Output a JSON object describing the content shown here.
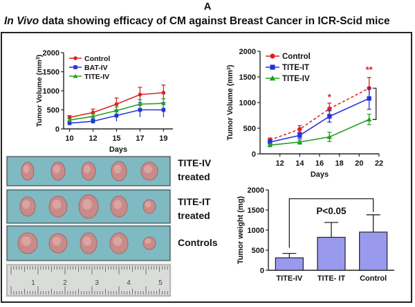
{
  "panel_letter": "A",
  "title": {
    "italic": "In Vivo",
    "rest": " data showing efficacy of CM against Breast Cancer in ICR-Scid mice"
  },
  "photo": {
    "rows": [
      {
        "label_line1": "TITE-IV",
        "label_line2": "treated",
        "tumor_count": 5
      },
      {
        "label_line1": "TITE-IT",
        "label_line2": "treated",
        "tumor_count": 5
      },
      {
        "label_line1": "Controls",
        "label_line2": "",
        "tumor_count": 5
      }
    ],
    "ruler_numbers": [
      "1",
      "2",
      "3",
      "4",
      "5"
    ]
  },
  "colors": {
    "control": "#e02020",
    "bat": "#2233dd",
    "tite_iv": "#22a022",
    "tite_it": "#2233dd",
    "bar_fill": "#9999ee",
    "photo_bg": "#7fb9c1"
  },
  "chart_data": [
    {
      "id": "chart1",
      "type": "line",
      "title": "",
      "xlabel": "Days",
      "ylabel": "Tumor Volume (mm³)",
      "ylabel_main": "Tumor Volume (mm",
      "ylabel_sup": "3",
      "ylabel_end": ")",
      "x_ticks": [
        "10",
        "12",
        "15",
        "17",
        "19"
      ],
      "x_positions": [
        10,
        12,
        14,
        16,
        18
      ],
      "ylim": [
        0,
        2000
      ],
      "y_ticks": [
        "0",
        "500",
        "1000",
        "1500",
        "2000"
      ],
      "y_tick_values": [
        0,
        500,
        1000,
        1500,
        2000
      ],
      "legend_position": "top-left",
      "series": [
        {
          "name": "Control",
          "color": "#e02020",
          "marker": "circle",
          "values": [
            300,
            430,
            650,
            900,
            950
          ],
          "errors": [
            50,
            90,
            160,
            190,
            200
          ]
        },
        {
          "name": "BAT-IV",
          "color": "#2233dd",
          "marker": "square",
          "values": [
            150,
            200,
            350,
            500,
            500
          ],
          "errors": [
            40,
            60,
            150,
            190,
            190
          ]
        },
        {
          "name": "TITE-IV",
          "color": "#22a022",
          "marker": "triangle",
          "values": [
            230,
            330,
            480,
            650,
            670
          ],
          "errors": [
            40,
            60,
            100,
            120,
            120
          ]
        }
      ]
    },
    {
      "id": "chart2",
      "type": "line",
      "title": "",
      "xlabel": "Days",
      "ylabel": "Tumor Volume (mm³)",
      "ylabel_main": "Tumor Volume (mm",
      "ylabel_sup": "3",
      "ylabel_end": ")",
      "xlim": [
        10,
        22
      ],
      "x_ticks": [
        "12",
        "14",
        "16",
        "18",
        "20",
        "22"
      ],
      "x_tick_values": [
        12,
        14,
        16,
        18,
        20,
        22
      ],
      "ylim": [
        0,
        2000
      ],
      "y_ticks": [
        "0",
        "500",
        "1000",
        "1500",
        "2000"
      ],
      "y_tick_values": [
        0,
        500,
        1000,
        1500,
        2000
      ],
      "legend_position": "top-left",
      "x": [
        11,
        14,
        17,
        21
      ],
      "series": [
        {
          "name": "Control",
          "color": "#e02020",
          "marker": "circle",
          "dashed": true,
          "values": [
            270,
            480,
            880,
            1280
          ],
          "errors": [
            40,
            70,
            110,
            210
          ]
        },
        {
          "name": "TITE-IT",
          "color": "#2233dd",
          "marker": "square",
          "dashed": false,
          "values": [
            230,
            360,
            730,
            1080
          ],
          "errors": [
            40,
            60,
            110,
            210
          ]
        },
        {
          "name": "TITE-IV",
          "color": "#22a022",
          "marker": "triangle",
          "dashed": false,
          "values": [
            170,
            230,
            330,
            670
          ],
          "errors": [
            30,
            40,
            90,
            100
          ]
        }
      ],
      "annotations": [
        {
          "text": "*",
          "x": 17,
          "y": 1050
        },
        {
          "text": "**",
          "x": 21,
          "y": 1580
        }
      ],
      "bracket": {
        "x": 21.7,
        "y_top": 1280,
        "y_bottom": 670
      }
    },
    {
      "id": "chart3",
      "type": "bar",
      "title": "",
      "xlabel": "",
      "ylabel": "Tumor weight (mg)",
      "categories": [
        "TITE-IV",
        "TITE- IT",
        "Control"
      ],
      "values": [
        310,
        820,
        950
      ],
      "errors": [
        110,
        370,
        430
      ],
      "ylim": [
        0,
        2000
      ],
      "y_ticks": [
        "0",
        "500",
        "1000",
        "1500",
        "2000"
      ],
      "y_tick_values": [
        0,
        500,
        1000,
        1500,
        2000
      ],
      "significance": {
        "label": "P<0.05",
        "from": 0,
        "to": 2,
        "y_left": 560,
        "y_right": 1450,
        "y_top": 1780
      }
    }
  ]
}
